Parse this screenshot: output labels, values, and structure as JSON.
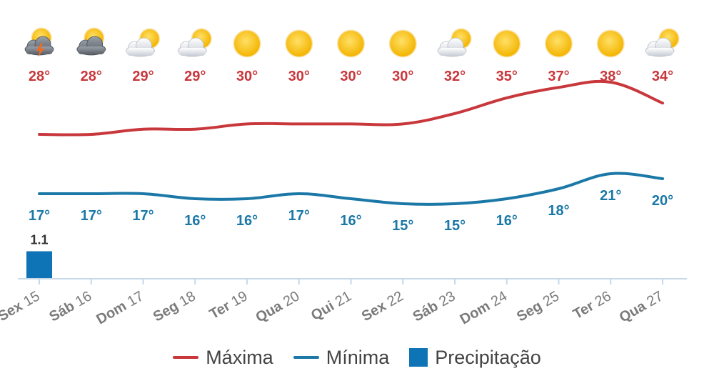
{
  "chart_data": {
    "type": "line",
    "categories": [
      "Sex 15",
      "Sáb 16",
      "Dom 17",
      "Seg 18",
      "Ter 19",
      "Qua 20",
      "Qui 21",
      "Sex 22",
      "Sáb 23",
      "Dom 24",
      "Seg 25",
      "Ter 26",
      "Qua 27"
    ],
    "series": [
      {
        "name": "Máxima",
        "values": [
          28,
          28,
          29,
          29,
          30,
          30,
          30,
          30,
          32,
          35,
          37,
          38,
          34
        ],
        "labels": [
          "28°",
          "28°",
          "29°",
          "29°",
          "30°",
          "30°",
          "30°",
          "30°",
          "32°",
          "35°",
          "37°",
          "38°",
          "34°"
        ],
        "color": "#c8373b"
      },
      {
        "name": "Mínima",
        "values": [
          17,
          17,
          17,
          16,
          16,
          17,
          16,
          15,
          15,
          16,
          18,
          21,
          20
        ],
        "labels": [
          "17°",
          "17°",
          "17°",
          "16°",
          "16°",
          "17°",
          "16°",
          "15°",
          "15°",
          "16°",
          "18°",
          "21°",
          "20°"
        ],
        "color": "#1b78a7"
      }
    ],
    "precipitation": {
      "name": "Precipitação",
      "values": [
        1.1,
        0,
        0,
        0,
        0,
        0,
        0,
        0,
        0,
        0,
        0,
        0,
        0
      ],
      "labels": [
        "1.1",
        "",
        "",
        "",
        "",
        "",
        "",
        "",
        "",
        "",
        "",
        "",
        ""
      ],
      "color": "#0f74b5"
    },
    "icons": [
      "thunderstorm-cloud-icon",
      "dark-cloud-sun-icon",
      "partly-cloudy-icon",
      "partly-cloudy-icon",
      "sun-icon",
      "sun-icon",
      "sun-icon",
      "sun-icon",
      "partly-cloudy-icon",
      "sun-icon",
      "sun-icon",
      "sun-icon",
      "partly-cloudy-icon"
    ],
    "legend": {
      "position": "bottom-center",
      "entries": [
        "Máxima",
        "Mínima",
        "Precipitação"
      ]
    },
    "grid": false
  }
}
